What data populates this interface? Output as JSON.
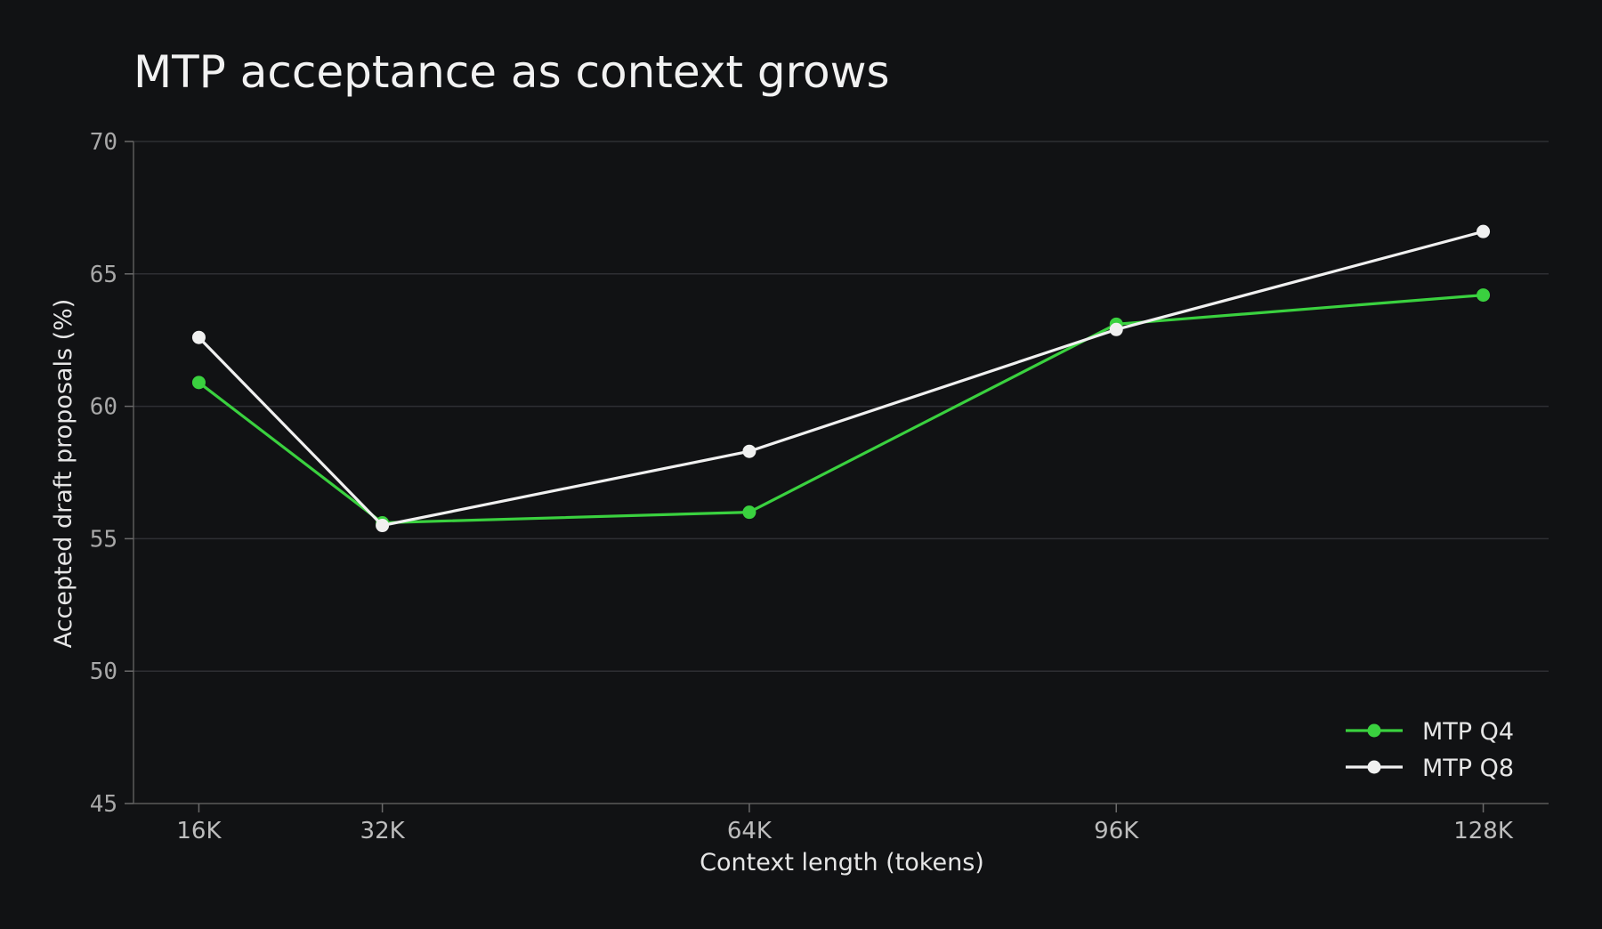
{
  "chart_data": {
    "type": "line",
    "title": "MTP acceptance as context grows",
    "xlabel": "Context length (tokens)",
    "ylabel": "Accepted draft proposals (%)",
    "x": [
      16,
      32,
      64,
      96,
      128
    ],
    "x_tick_labels": [
      "16K",
      "32K",
      "64K",
      "96K",
      "128K"
    ],
    "xlim": [
      10.3,
      133.7
    ],
    "ylim": [
      45,
      70
    ],
    "y_ticks": [
      45,
      50,
      55,
      60,
      65,
      70
    ],
    "grid": "horizontal",
    "legend_position": "bottom-right",
    "series": [
      {
        "name": "MTP Q4",
        "color": "#3ad13f",
        "values": [
          60.9,
          55.6,
          56.0,
          63.1,
          64.2
        ]
      },
      {
        "name": "MTP Q8",
        "color": "#f0f0f0",
        "values": [
          62.6,
          55.5,
          58.3,
          62.9,
          66.6
        ]
      }
    ]
  }
}
